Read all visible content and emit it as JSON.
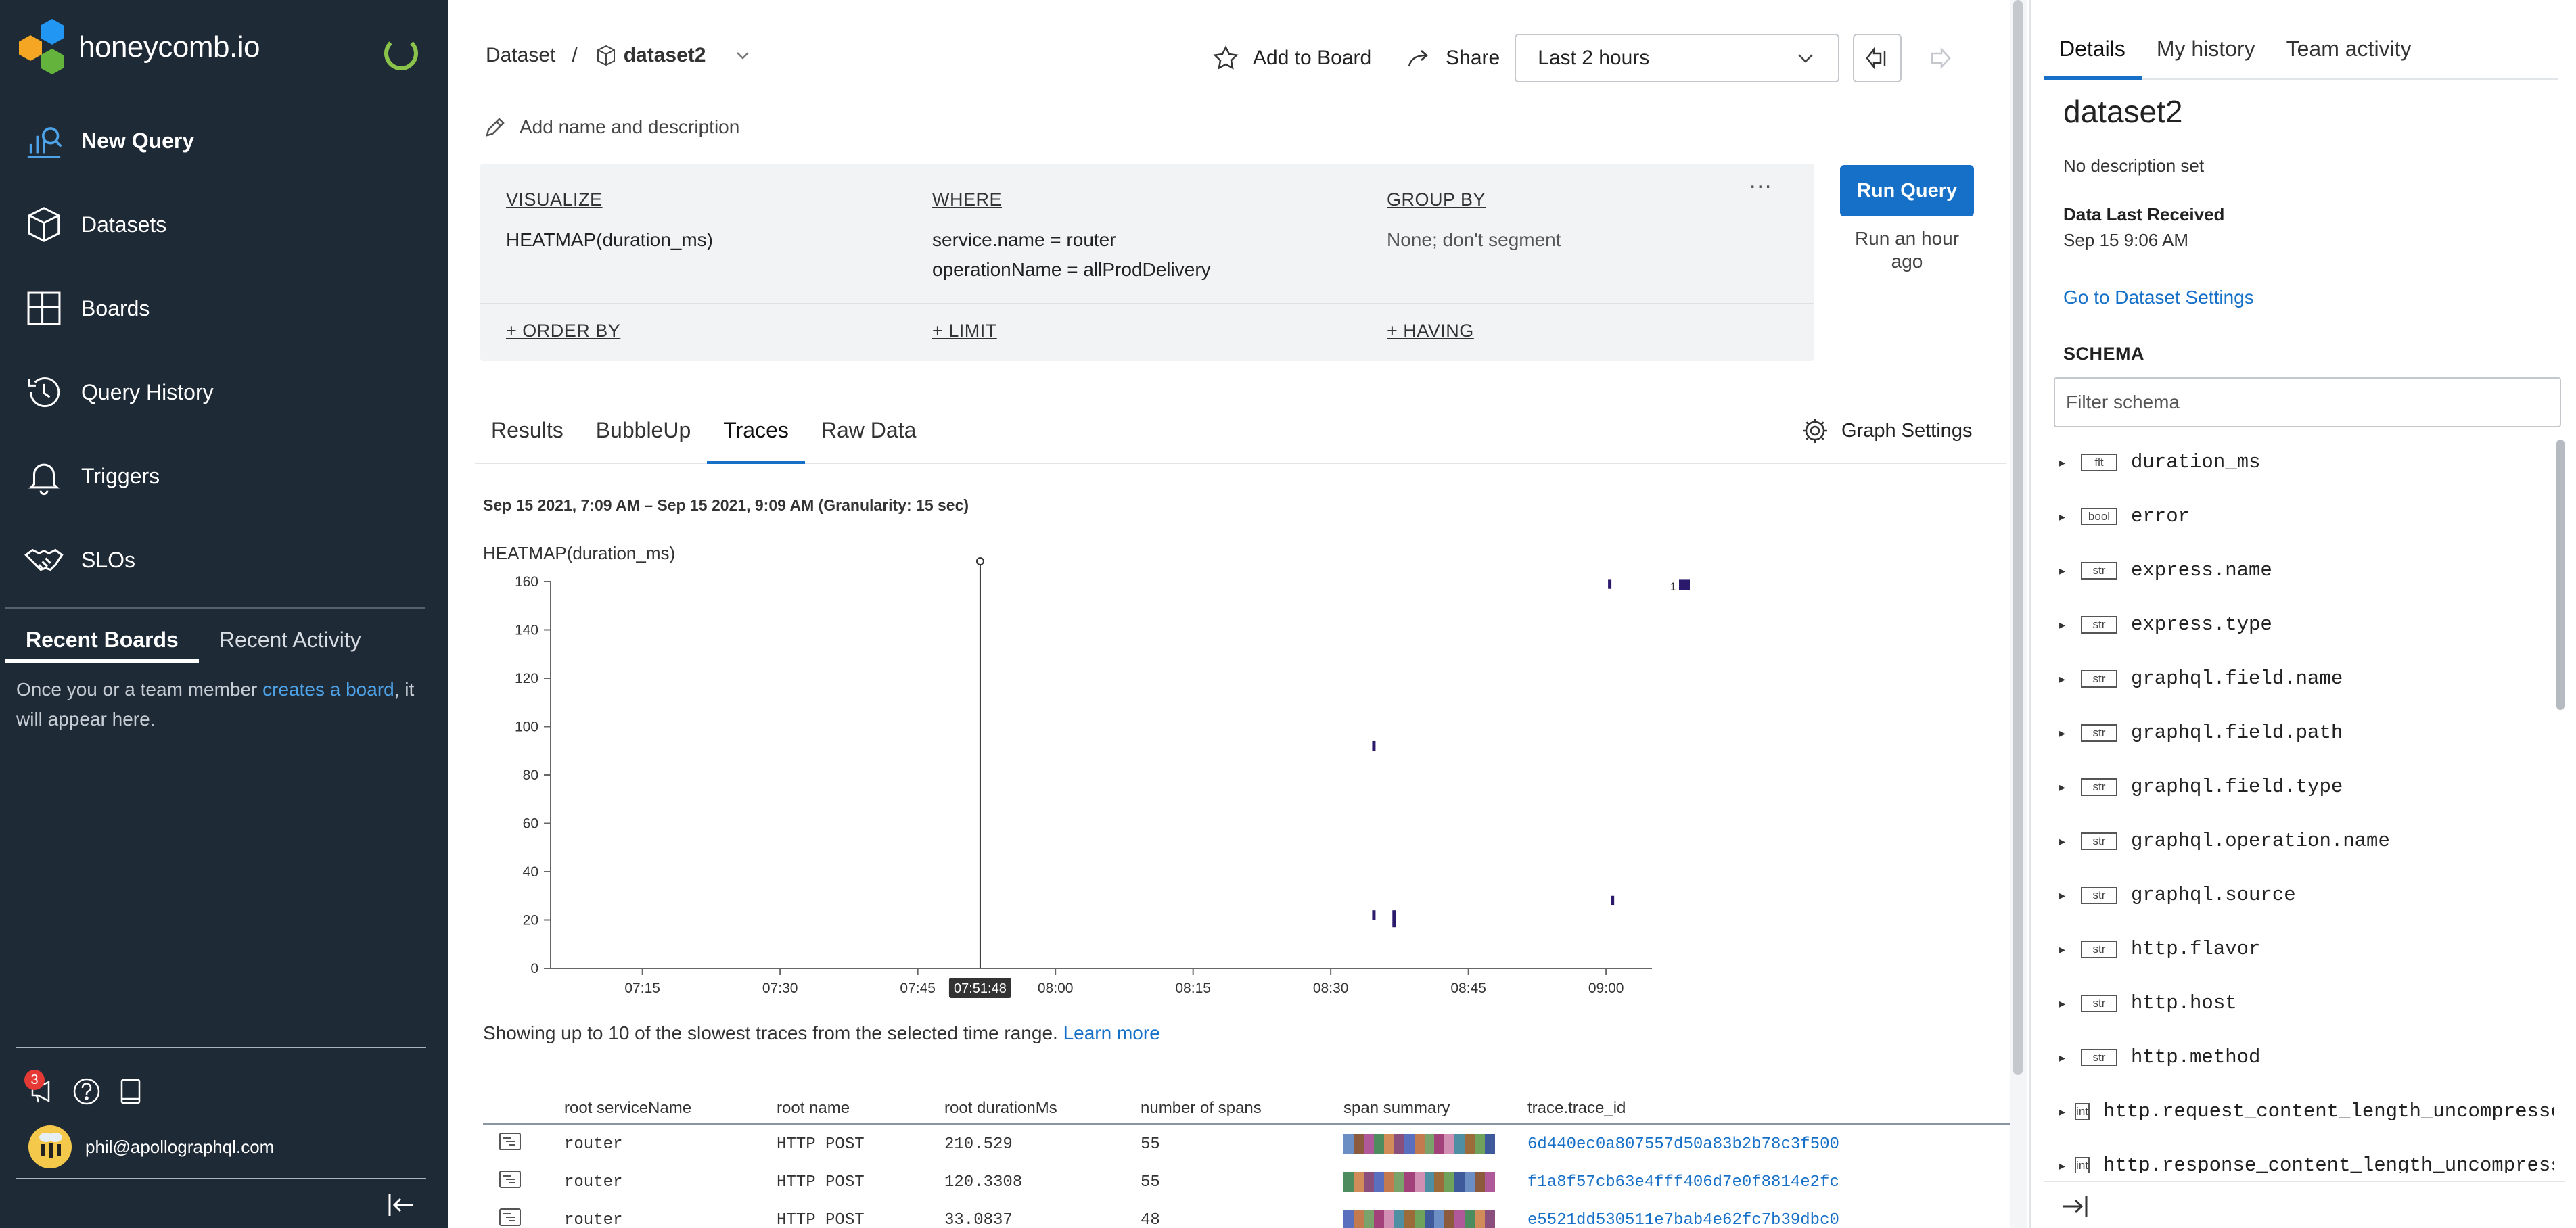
{
  "brand": {
    "name": "honeycomb.io"
  },
  "sidebar": {
    "items": [
      {
        "label": "New Query",
        "icon": "query-chart-icon"
      },
      {
        "label": "Datasets",
        "icon": "cube-icon"
      },
      {
        "label": "Boards",
        "icon": "grid-icon"
      },
      {
        "label": "Query History",
        "icon": "history-icon"
      },
      {
        "label": "Triggers",
        "icon": "bell-icon"
      },
      {
        "label": "SLOs",
        "icon": "handshake-icon"
      }
    ],
    "recent_tabs": [
      "Recent Boards",
      "Recent Activity"
    ],
    "recent_msg_before": "Once you or a team member ",
    "recent_msg_link": "creates a board",
    "recent_msg_after": ", it will appear here.",
    "notification_count": "3",
    "user_email": "phil@apollographql.com"
  },
  "header": {
    "breadcrumb_root": "Dataset",
    "breadcrumb_sep": "/",
    "dataset": "dataset2",
    "add_to_board": "Add to Board",
    "share": "Share",
    "time_range": "Last 2 hours",
    "add_name": "Add name and description"
  },
  "query": {
    "visualize_head": "VISUALIZE",
    "visualize": [
      "HEATMAP(duration_ms)"
    ],
    "where_head": "WHERE",
    "where": [
      "service.name = router",
      "operationName = allProdDelivery"
    ],
    "groupby_head": "GROUP BY",
    "groupby": [
      "None; don't segment"
    ],
    "order_by": "+ ORDER BY",
    "limit": "+ LIMIT",
    "having": "+ HAVING",
    "more": "...",
    "run_label": "Run Query",
    "run_ago": "Run an hour ago"
  },
  "tabs": [
    "Results",
    "BubbleUp",
    "Traces",
    "Raw Data"
  ],
  "graph_settings": "Graph Settings",
  "time_range_caption": "Sep 15 2021, 7:09 AM – Sep 15 2021, 9:09 AM (Granularity: 15 sec)",
  "chart_data": {
    "type": "heatmap",
    "title": "HEATMAP(duration_ms)",
    "ylim": [
      0,
      160
    ],
    "yticks": [
      0,
      20,
      40,
      60,
      80,
      100,
      120,
      140,
      160
    ],
    "xlim_minutes": [
      425,
      545
    ],
    "xticks": [
      {
        "label": "07:15",
        "minute": 435
      },
      {
        "label": "07:30",
        "minute": 450
      },
      {
        "label": "07:45",
        "minute": 465
      },
      {
        "label": "08:00",
        "minute": 480
      },
      {
        "label": "08:15",
        "minute": 495
      },
      {
        "label": "08:30",
        "minute": 510
      },
      {
        "label": "08:45",
        "minute": 525
      },
      {
        "label": "09:00",
        "minute": 540
      }
    ],
    "marker": {
      "label": "07:51:48",
      "minute": 471.8
    },
    "cells": [
      {
        "minute": 514.7,
        "y0": 90,
        "y1": 94
      },
      {
        "minute": 514.7,
        "y0": 20,
        "y1": 24
      },
      {
        "minute": 516.9,
        "y0": 17,
        "y1": 24
      },
      {
        "minute": 540.7,
        "y0": 26,
        "y1": 30
      },
      {
        "minute": 540.4,
        "y0": 157,
        "y1": 161
      }
    ],
    "legend": {
      "min": "1",
      "color": "#2b1a6b"
    }
  },
  "traces": {
    "intro": "Showing up to 10 of the slowest traces from the selected time range.",
    "learn_more": "Learn more",
    "columns": [
      "root serviceName",
      "root name",
      "root durationMs",
      "number of spans",
      "span summary",
      "trace.trace_id"
    ],
    "rows": [
      {
        "service": "router",
        "name": "HTTP POST",
        "duration": "210.529",
        "spans": "55",
        "trace_id": "6d440ec0a807557d50a83b2b78c3f500"
      },
      {
        "service": "router",
        "name": "HTTP POST",
        "duration": "120.3308",
        "spans": "55",
        "trace_id": "f1a8f57cb63e4fff406d7e0f8814e2fc"
      },
      {
        "service": "router",
        "name": "HTTP POST",
        "duration": "33.0837",
        "spans": "48",
        "trace_id": "e5521dd530511e7bab4e62fc7b39dbc0"
      }
    ],
    "span_colors": [
      "#6b8fc4",
      "#8c5a3c",
      "#b0599a",
      "#4c8c5f",
      "#d18c5a",
      "#8a4f7d",
      "#5b6fbf",
      "#c47a4f",
      "#7aa36b",
      "#a3417a",
      "#d08fb3",
      "#4f8fa3",
      "#9c6b3a",
      "#6fa35c",
      "#3e5a9a"
    ]
  },
  "details": {
    "tabs": [
      "Details",
      "My history",
      "Team activity"
    ],
    "title": "dataset2",
    "description": "No description set",
    "last_received_label": "Data Last Received",
    "last_received_value": "Sep 15 9:06 AM",
    "settings_link": "Go to Dataset Settings",
    "schema_label": "SCHEMA",
    "filter_placeholder": "Filter schema",
    "schema": [
      {
        "type": "flt",
        "name": "duration_ms"
      },
      {
        "type": "bool",
        "name": "error"
      },
      {
        "type": "str",
        "name": "express.name"
      },
      {
        "type": "str",
        "name": "express.type"
      },
      {
        "type": "str",
        "name": "graphql.field.name"
      },
      {
        "type": "str",
        "name": "graphql.field.path"
      },
      {
        "type": "str",
        "name": "graphql.field.type"
      },
      {
        "type": "str",
        "name": "graphql.operation.name"
      },
      {
        "type": "str",
        "name": "graphql.source"
      },
      {
        "type": "str",
        "name": "http.flavor"
      },
      {
        "type": "str",
        "name": "http.host"
      },
      {
        "type": "str",
        "name": "http.method"
      },
      {
        "type": "int",
        "name": "http.request_content_length_uncompressed"
      },
      {
        "type": "int",
        "name": "http.response_content_length_uncompressed"
      }
    ]
  }
}
